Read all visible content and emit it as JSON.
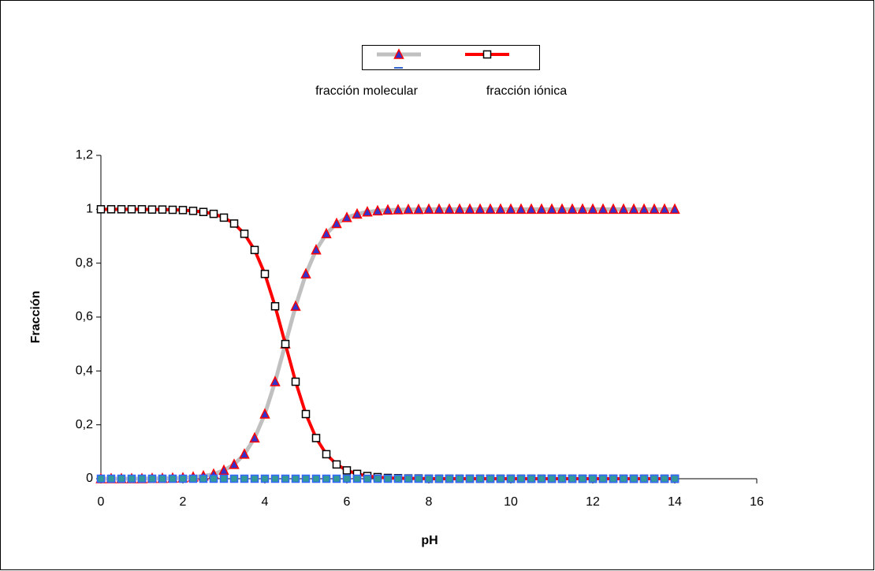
{
  "chart_data": {
    "type": "line",
    "x_label": "pH",
    "y_label": "Fracción",
    "x": [
      0,
      0.25,
      0.5,
      0.75,
      1,
      1.25,
      1.5,
      1.75,
      2,
      2.25,
      2.5,
      2.75,
      3,
      3.25,
      3.5,
      3.75,
      4,
      4.25,
      4.5,
      4.75,
      5,
      5.25,
      5.5,
      5.75,
      6,
      6.25,
      6.5,
      6.75,
      7,
      7.25,
      7.5,
      7.75,
      8,
      8.25,
      8.5,
      8.75,
      9,
      9.25,
      9.5,
      9.75,
      10,
      10.25,
      10.5,
      10.75,
      11,
      11.25,
      11.5,
      11.75,
      12,
      12.25,
      12.5,
      12.75,
      13,
      13.25,
      13.5,
      13.75,
      14
    ],
    "series": [
      {
        "name": "fracción molecular",
        "color": "#c0c0c0",
        "line_width": 5,
        "marker": "triangle",
        "marker_fill": "#3333cc",
        "marker_edge": "#ff0000",
        "values": [
          0,
          0,
          0,
          0,
          0,
          0.001,
          0.001,
          0.002,
          0.003,
          0.006,
          0.01,
          0.017,
          0.031,
          0.053,
          0.091,
          0.151,
          0.24,
          0.36,
          0.5,
          0.64,
          0.76,
          0.849,
          0.909,
          0.947,
          0.969,
          0.982,
          0.99,
          0.994,
          0.997,
          0.998,
          0.999,
          0.999,
          1,
          1,
          1,
          1,
          1,
          1,
          1,
          1,
          1,
          1,
          1,
          1,
          1,
          1,
          1,
          1,
          1,
          1,
          1,
          1,
          1,
          1,
          1,
          1,
          1
        ]
      },
      {
        "name": "fracción iónica",
        "color": "#ff0000",
        "line_width": 4,
        "marker": "square",
        "marker_fill": "#ffffff",
        "marker_edge": "#000000",
        "values": [
          1,
          1,
          1,
          1,
          1,
          0.999,
          0.999,
          0.998,
          0.997,
          0.994,
          0.99,
          0.983,
          0.969,
          0.947,
          0.909,
          0.849,
          0.76,
          0.64,
          0.5,
          0.36,
          0.24,
          0.151,
          0.091,
          0.053,
          0.031,
          0.018,
          0.01,
          0.006,
          0.003,
          0.002,
          0.001,
          0.001,
          0,
          0,
          0,
          0,
          0,
          0,
          0,
          0,
          0,
          0,
          0,
          0,
          0,
          0,
          0,
          0,
          0,
          0,
          0,
          0,
          0,
          0,
          0,
          0,
          0
        ]
      },
      {
        "color": "#3366cc",
        "line_width": 0,
        "marker": "square",
        "marker_fill": "#339999",
        "marker_edge": "#3366ff",
        "values": [
          0,
          0,
          0,
          0,
          0,
          0,
          0,
          0,
          0,
          0,
          0,
          0,
          0,
          0,
          0,
          0,
          0,
          0,
          0,
          0,
          0,
          0,
          0,
          0,
          0,
          0,
          0,
          0,
          0,
          0,
          0,
          0,
          0,
          0,
          0,
          0,
          0,
          0,
          0,
          0,
          0,
          0,
          0,
          0,
          0,
          0,
          0,
          0,
          0,
          0,
          0,
          0,
          0,
          0,
          0,
          0,
          0
        ]
      }
    ],
    "xlim": [
      0,
      16
    ],
    "xticks": [
      0,
      2,
      4,
      6,
      8,
      10,
      12,
      14,
      16
    ],
    "ylim": [
      0,
      1.2
    ],
    "yticks": [
      0,
      {
        "value": 0.2,
        "label": "0,2"
      },
      {
        "value": 0.4,
        "label": "0,4"
      },
      {
        "value": 0.6,
        "label": "0,6"
      },
      {
        "value": 0.8,
        "label": "0,8"
      },
      1,
      {
        "value": 1.2,
        "label": "1,2"
      }
    ],
    "grid": false,
    "legend": "top"
  }
}
